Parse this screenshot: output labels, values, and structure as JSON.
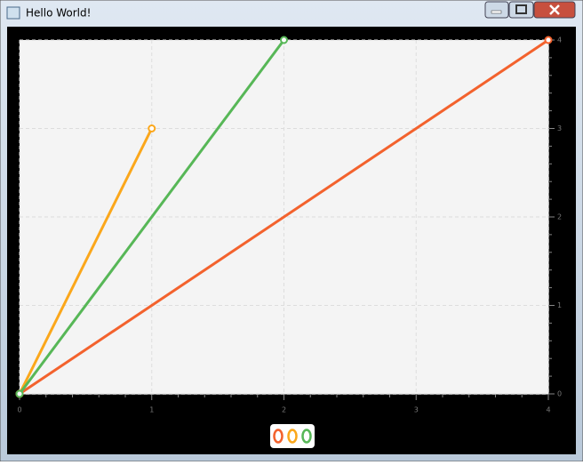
{
  "window": {
    "title": "Hello World!"
  },
  "chart_data": {
    "type": "line",
    "series": [
      {
        "color": "#f3622d",
        "x": [
          0,
          4
        ],
        "values": [
          0,
          4
        ]
      },
      {
        "color": "#fba71b",
        "x": [
          0,
          1
        ],
        "values": [
          0,
          3
        ]
      },
      {
        "color": "#57b757",
        "x": [
          0,
          2
        ],
        "values": [
          0,
          4
        ]
      }
    ],
    "xlim": [
      0,
      4
    ],
    "xticks": [
      0,
      1,
      2,
      3,
      4
    ],
    "ylim": [
      0,
      4
    ],
    "yticks": [
      0,
      1,
      2,
      3,
      4
    ],
    "grid": true
  }
}
